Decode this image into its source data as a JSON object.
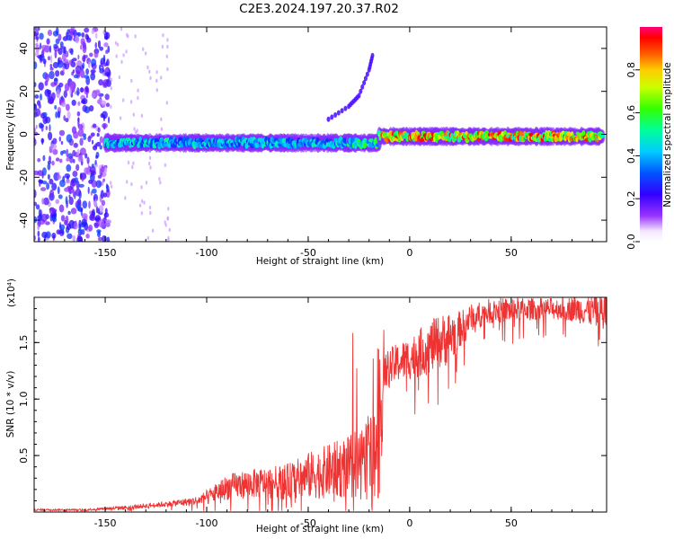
{
  "title": "C2E3.2024.197.20.37.R02",
  "chart_data": [
    {
      "type": "heatmap",
      "xlabel": "Height of straight line (km)",
      "ylabel": "Frequency (Hz)",
      "xlim": [
        -185,
        97
      ],
      "ylim": [
        -50,
        50
      ],
      "xticks": [
        -150,
        -100,
        -50,
        0,
        50
      ],
      "yticks": [
        -40,
        -20,
        0,
        20,
        40
      ],
      "colorbar": {
        "label": "Normalized spectral amplitude",
        "range": [
          0.0,
          1.0
        ],
        "ticks": [
          "0.0",
          "0.2",
          "0.4",
          "0.6",
          "0.8"
        ]
      },
      "features": [
        {
          "kind": "noise_band",
          "x_range": [
            -185,
            -148
          ],
          "freq_range": [
            -50,
            50
          ],
          "amplitude": 0.25
        },
        {
          "kind": "doppler_line",
          "x_range": [
            -150,
            -30
          ],
          "freq_center": -4,
          "amplitude": 0.45
        },
        {
          "kind": "doppler_line",
          "x_range": [
            -30,
            -15
          ],
          "freq_center": -4,
          "amplitude": 0.55
        },
        {
          "kind": "doppler_line",
          "x_range": [
            -15,
            95
          ],
          "freq_center": -1,
          "amplitude": 0.85
        },
        {
          "kind": "curved_trace",
          "points": [
            [
              -40,
              7
            ],
            [
              -30,
              13
            ],
            [
              -25,
              18
            ],
            [
              -20,
              30
            ],
            [
              -18,
              38
            ]
          ],
          "amplitude": 0.2
        }
      ]
    },
    {
      "type": "line",
      "xlabel": "Height of straight line (km)",
      "ylabel": "SNR (10 * v/v)",
      "y_multiplier": "(x10⁴)",
      "xlim": [
        -185,
        97
      ],
      "ylim": [
        0.0,
        1.9
      ],
      "xticks": [
        -150,
        -100,
        -50,
        0,
        50
      ],
      "yticks": [
        "0.5",
        "1.0",
        "1.5"
      ],
      "color": "#ee3333",
      "x": [
        -185,
        -160,
        -140,
        -120,
        -105,
        -100,
        -90,
        -80,
        -70,
        -60,
        -50,
        -40,
        -30,
        -20,
        -15,
        -12,
        -5,
        0,
        10,
        20,
        25,
        30,
        40,
        50,
        60,
        70,
        80,
        90,
        97
      ],
      "y": [
        0.02,
        0.02,
        0.04,
        0.07,
        0.1,
        0.13,
        0.22,
        0.25,
        0.26,
        0.27,
        0.32,
        0.36,
        0.4,
        0.46,
        0.55,
        1.25,
        1.33,
        1.36,
        1.46,
        1.55,
        1.62,
        1.72,
        1.78,
        1.79,
        1.8,
        1.8,
        1.8,
        1.78,
        1.77
      ],
      "noise_amplitude": [
        0.01,
        0.01,
        0.02,
        0.03,
        0.05,
        0.08,
        0.14,
        0.16,
        0.17,
        0.2,
        0.26,
        0.3,
        0.35,
        0.45,
        0.55,
        0.22,
        0.22,
        0.24,
        0.3,
        0.3,
        0.2,
        0.15,
        0.14,
        0.14,
        0.12,
        0.12,
        0.14,
        0.18,
        0.3
      ]
    }
  ]
}
